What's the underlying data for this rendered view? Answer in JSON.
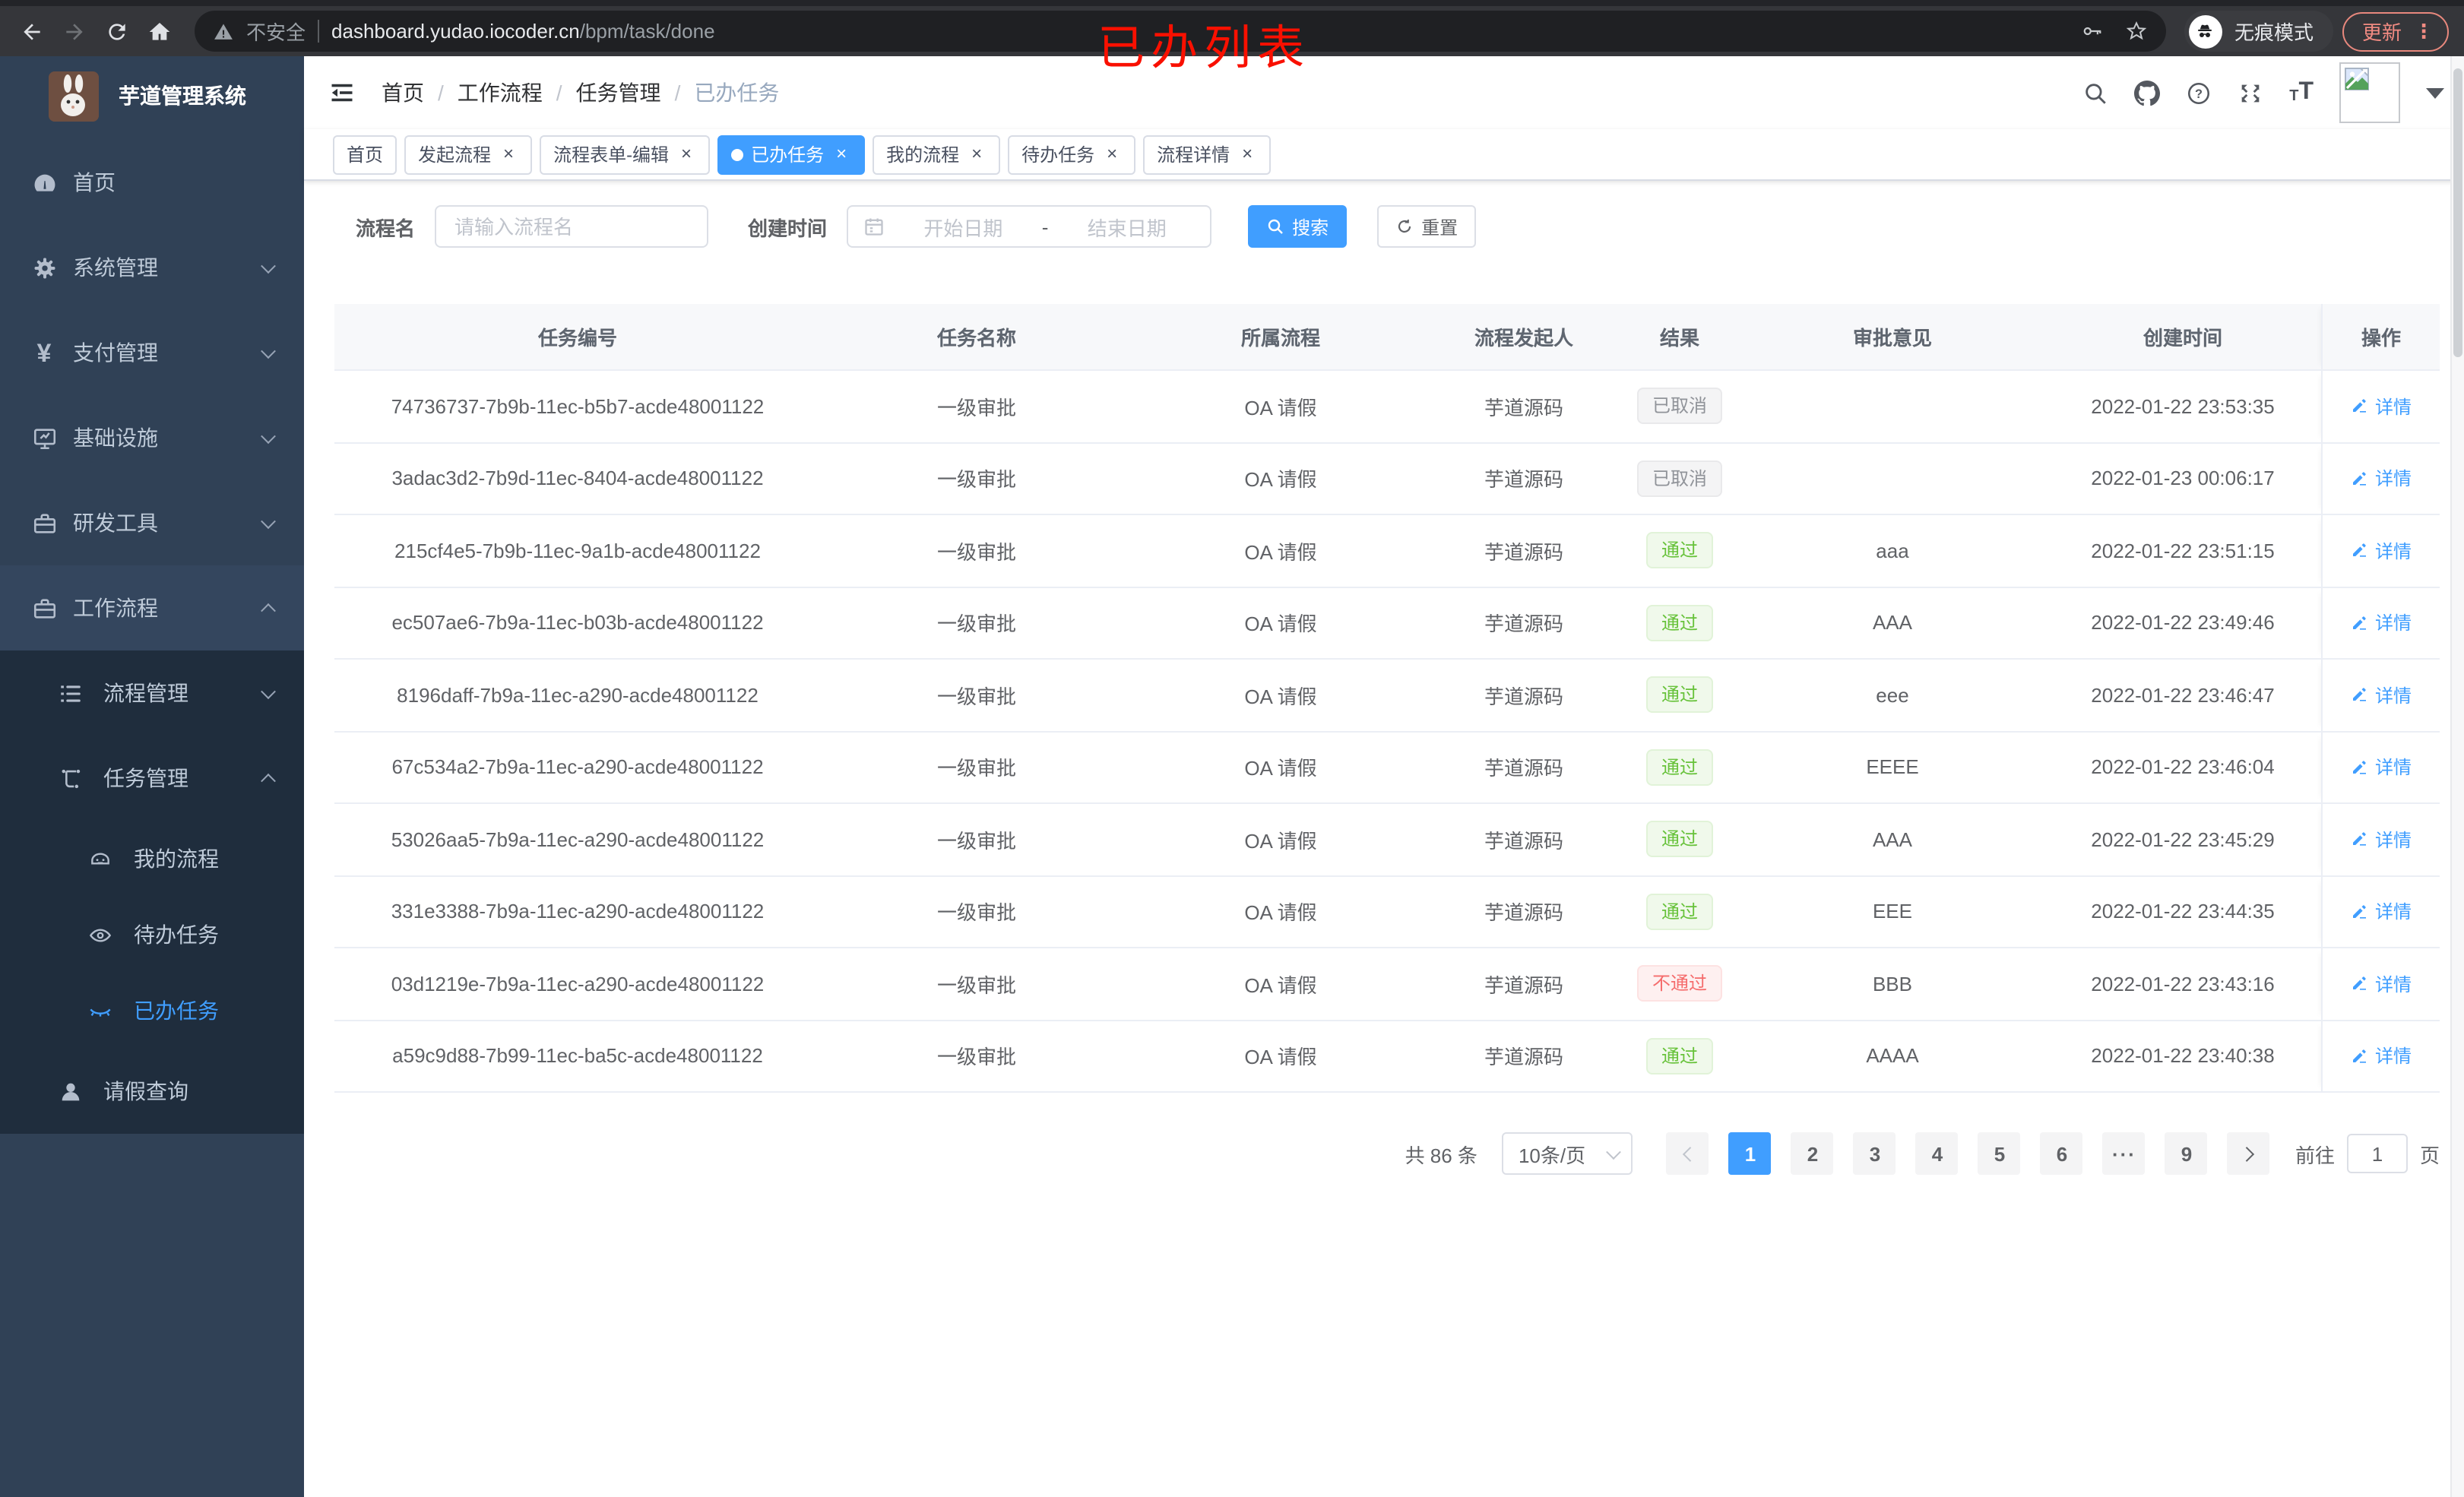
{
  "browser": {
    "security_warning": "不安全",
    "url_domain": "dashboard.yudao.iocoder.cn",
    "url_path": "/bpm/task/done",
    "incognito_label": "无痕模式",
    "update_label": "更新",
    "update_dots": "⋮"
  },
  "annotation": {
    "text": "已办列表"
  },
  "sidebar": {
    "title": "芋道管理系统",
    "items": [
      {
        "label": "首页"
      },
      {
        "label": "系统管理"
      },
      {
        "label": "支付管理"
      },
      {
        "label": "基础设施"
      },
      {
        "label": "研发工具"
      },
      {
        "label": "工作流程"
      }
    ],
    "workflow_children": [
      {
        "label": "流程管理"
      },
      {
        "label": "任务管理"
      }
    ],
    "task_children": [
      {
        "label": "我的流程"
      },
      {
        "label": "待办任务"
      },
      {
        "label": "已办任务"
      }
    ],
    "leave_query_label": "请假查询"
  },
  "header": {
    "breadcrumb": [
      {
        "label": "首页"
      },
      {
        "label": "工作流程"
      },
      {
        "label": "任务管理"
      },
      {
        "label": "已办任务"
      }
    ],
    "separator": "/"
  },
  "tabs": [
    {
      "label": "首页",
      "closable": false,
      "active": false
    },
    {
      "label": "发起流程",
      "closable": true,
      "active": false
    },
    {
      "label": "流程表单-编辑",
      "closable": true,
      "active": false
    },
    {
      "label": "已办任务",
      "closable": true,
      "active": true
    },
    {
      "label": "我的流程",
      "closable": true,
      "active": false
    },
    {
      "label": "待办任务",
      "closable": true,
      "active": false
    },
    {
      "label": "流程详情",
      "closable": true,
      "active": false
    }
  ],
  "filters": {
    "name_label": "流程名",
    "name_placeholder": "请输入流程名",
    "date_label": "创建时间",
    "date_start_placeholder": "开始日期",
    "date_separator": "-",
    "date_end_placeholder": "结束日期",
    "search_label": "搜索",
    "reset_label": "重置"
  },
  "table": {
    "columns": [
      "任务编号",
      "任务名称",
      "所属流程",
      "流程发起人",
      "结果",
      "审批意见",
      "创建时间",
      "操作"
    ],
    "detail_label": "详情",
    "rows": [
      {
        "id": "74736737-7b9b-11ec-b5b7-acde48001122",
        "name": "一级审批",
        "process": "OA 请假",
        "starter": "芋道源码",
        "result": "已取消",
        "result_type": "info",
        "comment": "",
        "created": "2022-01-22 23:53:35"
      },
      {
        "id": "3adac3d2-7b9d-11ec-8404-acde48001122",
        "name": "一级审批",
        "process": "OA 请假",
        "starter": "芋道源码",
        "result": "已取消",
        "result_type": "info",
        "comment": "",
        "created": "2022-01-23 00:06:17"
      },
      {
        "id": "215cf4e5-7b9b-11ec-9a1b-acde48001122",
        "name": "一级审批",
        "process": "OA 请假",
        "starter": "芋道源码",
        "result": "通过",
        "result_type": "success",
        "comment": "aaa",
        "created": "2022-01-22 23:51:15"
      },
      {
        "id": "ec507ae6-7b9a-11ec-b03b-acde48001122",
        "name": "一级审批",
        "process": "OA 请假",
        "starter": "芋道源码",
        "result": "通过",
        "result_type": "success",
        "comment": "AAA",
        "created": "2022-01-22 23:49:46"
      },
      {
        "id": "8196daff-7b9a-11ec-a290-acde48001122",
        "name": "一级审批",
        "process": "OA 请假",
        "starter": "芋道源码",
        "result": "通过",
        "result_type": "success",
        "comment": "eee",
        "created": "2022-01-22 23:46:47"
      },
      {
        "id": "67c534a2-7b9a-11ec-a290-acde48001122",
        "name": "一级审批",
        "process": "OA 请假",
        "starter": "芋道源码",
        "result": "通过",
        "result_type": "success",
        "comment": "EEEE",
        "created": "2022-01-22 23:46:04"
      },
      {
        "id": "53026aa5-7b9a-11ec-a290-acde48001122",
        "name": "一级审批",
        "process": "OA 请假",
        "starter": "芋道源码",
        "result": "通过",
        "result_type": "success",
        "comment": "AAA",
        "created": "2022-01-22 23:45:29"
      },
      {
        "id": "331e3388-7b9a-11ec-a290-acde48001122",
        "name": "一级审批",
        "process": "OA 请假",
        "starter": "芋道源码",
        "result": "通过",
        "result_type": "success",
        "comment": "EEE",
        "created": "2022-01-22 23:44:35"
      },
      {
        "id": "03d1219e-7b9a-11ec-a290-acde48001122",
        "name": "一级审批",
        "process": "OA 请假",
        "starter": "芋道源码",
        "result": "不通过",
        "result_type": "danger",
        "comment": "BBB",
        "created": "2022-01-22 23:43:16"
      },
      {
        "id": "a59c9d88-7b99-11ec-ba5c-acde48001122",
        "name": "一级审批",
        "process": "OA 请假",
        "starter": "芋道源码",
        "result": "通过",
        "result_type": "success",
        "comment": "AAAA",
        "created": "2022-01-22 23:40:38"
      }
    ]
  },
  "pagination": {
    "total_text": "共 86 条",
    "page_size": "10条/页",
    "pages": [
      "1",
      "2",
      "3",
      "4",
      "5",
      "6",
      "···",
      "9"
    ],
    "active_page": "1",
    "goto_label": "前往",
    "goto_value": "1",
    "page_unit": "页"
  }
}
